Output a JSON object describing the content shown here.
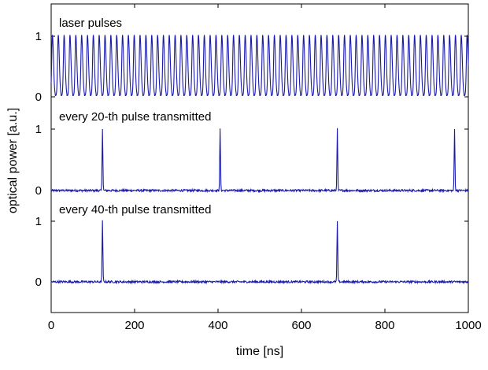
{
  "chart_data": {
    "type": "line",
    "xlabel": "time [ns]",
    "ylabel": "optical power [a.u.]",
    "xlim": [
      0,
      1000
    ],
    "xticks": [
      0,
      200,
      400,
      600,
      800,
      1000
    ],
    "grid": false,
    "line_color": "#1a1aaa",
    "panels": [
      {
        "title": "laser pulses",
        "yticks": [
          0,
          1
        ],
        "pulse_period_ns": 14,
        "first_pulse_ns": 3,
        "pulse_peak": 1,
        "description": "continuous periodic train"
      },
      {
        "title": "every 20-th pulse transmitted",
        "yticks": [
          0,
          1
        ],
        "pulse_times_ns": [
          123,
          405,
          686,
          967
        ],
        "pulse_peak": 1
      },
      {
        "title": "every 40-th pulse transmitted",
        "yticks": [
          0,
          1
        ],
        "pulse_times_ns": [
          123,
          686
        ],
        "pulse_peak": 1
      }
    ]
  }
}
